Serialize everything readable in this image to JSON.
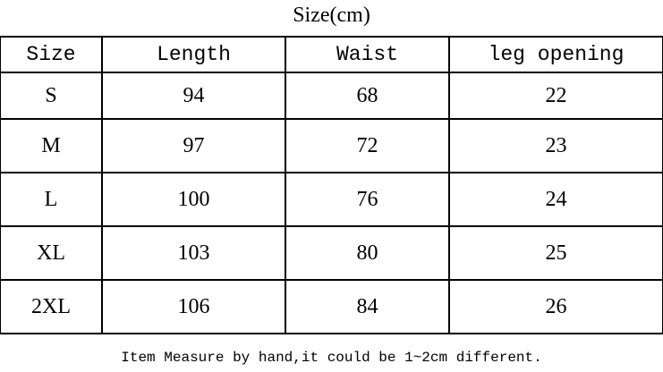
{
  "title": "Size(cm)",
  "table": {
    "headers": [
      "Size",
      "Length",
      "Waist",
      "leg opening"
    ],
    "rows": [
      [
        "S",
        "94",
        "68",
        "22"
      ],
      [
        "M",
        "97",
        "72",
        "23"
      ],
      [
        "L",
        "100",
        "76",
        "24"
      ],
      [
        "XL",
        "103",
        "80",
        "25"
      ],
      [
        "2XL",
        "106",
        "84",
        "26"
      ]
    ]
  },
  "note": "Item Measure by hand,it could be 1~2cm different."
}
